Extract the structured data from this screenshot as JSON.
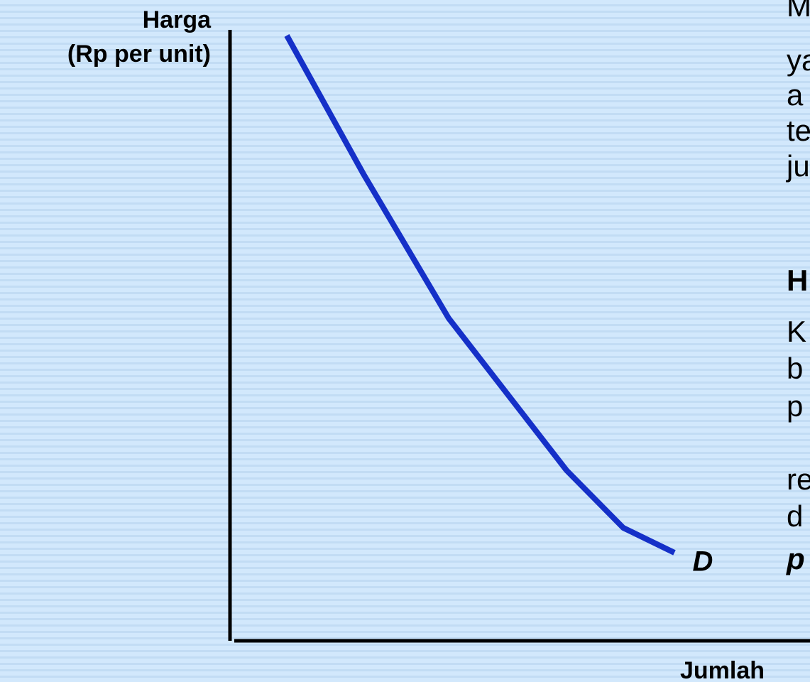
{
  "chart_data": {
    "type": "line",
    "y_label": [
      "Harga",
      "(Rp per unit)"
    ],
    "x_label": "Jumlah",
    "curve_label": "D",
    "side_text": {
      "upper": [
        "M",
        "ya",
        "a",
        "te",
        "ju"
      ],
      "heading": "H",
      "lower": [
        "K",
        "b",
        "p",
        "re",
        "d"
      ],
      "emphasis": "p"
    }
  }
}
